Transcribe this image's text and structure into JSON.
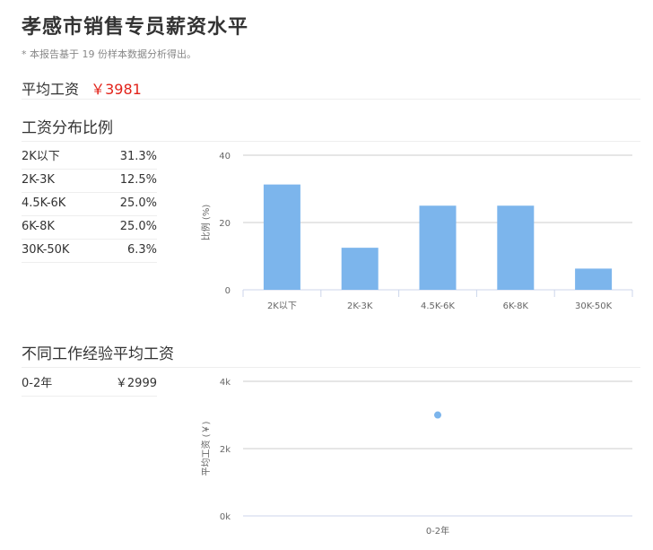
{
  "header": {
    "title": "孝感市销售专员薪资水平",
    "note": "* 本报告基于 19 份样本数据分析得出。"
  },
  "average": {
    "label": "平均工资",
    "value": "￥3981"
  },
  "distribution": {
    "title": "工资分布比例",
    "rows": [
      {
        "label": "2K以下",
        "value": "31.3%"
      },
      {
        "label": "2K-3K",
        "value": "12.5%"
      },
      {
        "label": "4.5K-6K",
        "value": "25.0%"
      },
      {
        "label": "6K-8K",
        "value": "25.0%"
      },
      {
        "label": "30K-50K",
        "value": "6.3%"
      }
    ]
  },
  "experience": {
    "title": "不同工作经验平均工资",
    "rows": [
      {
        "label": "0-2年",
        "value": "￥2999"
      }
    ]
  },
  "colors": {
    "bar": "#7cb5ec",
    "accent": "#e2231a",
    "grid": "#cccccc"
  },
  "chart_data": [
    {
      "type": "bar",
      "categories": [
        "2K以下",
        "2K-3K",
        "4.5K-6K",
        "6K-8K",
        "30K-50K"
      ],
      "values": [
        31.3,
        12.5,
        25.0,
        25.0,
        6.3
      ],
      "ylabel": "比例 (%)",
      "yticks": [
        "0",
        "20",
        "40"
      ],
      "ylim": [
        0,
        40
      ],
      "grid": true
    },
    {
      "type": "scatter",
      "categories": [
        "0-2年"
      ],
      "values": [
        2999
      ],
      "ylabel": "平均工资 (￥)",
      "yticks": [
        "0k",
        "2k",
        "4k"
      ],
      "ylim": [
        0,
        4000
      ],
      "grid": true
    }
  ]
}
